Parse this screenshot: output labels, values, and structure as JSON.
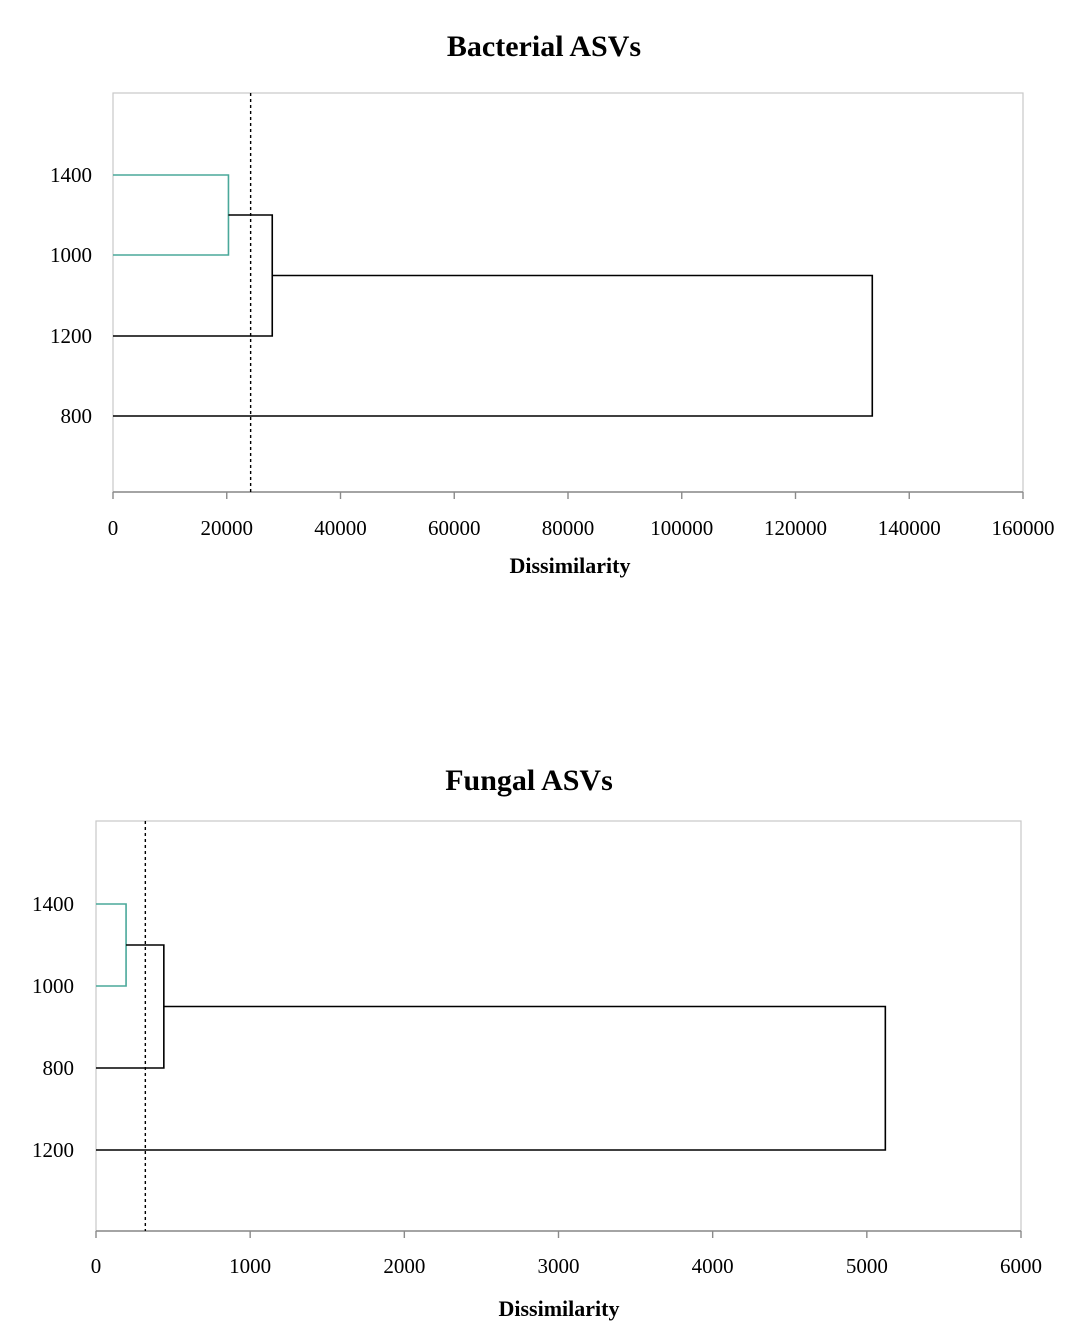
{
  "chart_data": [
    {
      "type": "dendrogram",
      "title": "Bacterial ASVs",
      "xlabel": "Dissimilarity",
      "xlim": [
        0,
        160000
      ],
      "xticks": [
        0,
        20000,
        40000,
        60000,
        80000,
        100000,
        120000,
        140000,
        160000
      ],
      "xtick_labels": [
        "0",
        "20000",
        "40000",
        "60000",
        "80000",
        "100000",
        "120000",
        "140000",
        "160000"
      ],
      "leaves": [
        "1400",
        "1000",
        "1200",
        "800"
      ],
      "merges": [
        {
          "join": [
            "1400",
            "1000"
          ],
          "height": 20300,
          "color": "#4aa89a"
        },
        {
          "join": [
            "(1400,1000)",
            "1200"
          ],
          "height": 28000,
          "color": "#000000"
        },
        {
          "join": [
            "(1400,1000,1200)",
            "800"
          ],
          "height": 133500,
          "color": "#000000"
        }
      ],
      "cut_line": 24200
    },
    {
      "type": "dendrogram",
      "title": "Fungal ASVs",
      "xlabel": "Dissimilarity",
      "xlim": [
        0,
        6000
      ],
      "xticks": [
        0,
        1000,
        2000,
        3000,
        4000,
        5000,
        6000
      ],
      "xtick_labels": [
        "0",
        "1000",
        "2000",
        "3000",
        "4000",
        "5000",
        "6000"
      ],
      "leaves": [
        "1400",
        "1000",
        "800",
        "1200"
      ],
      "merges": [
        {
          "join": [
            "1400",
            "1000"
          ],
          "height": 195,
          "color": "#4aa89a"
        },
        {
          "join": [
            "(1400,1000)",
            "800"
          ],
          "height": 440,
          "color": "#000000"
        },
        {
          "join": [
            "(1400,1000,800)",
            "1200"
          ],
          "height": 5120,
          "color": "#000000"
        }
      ],
      "cut_line": 320
    }
  ]
}
